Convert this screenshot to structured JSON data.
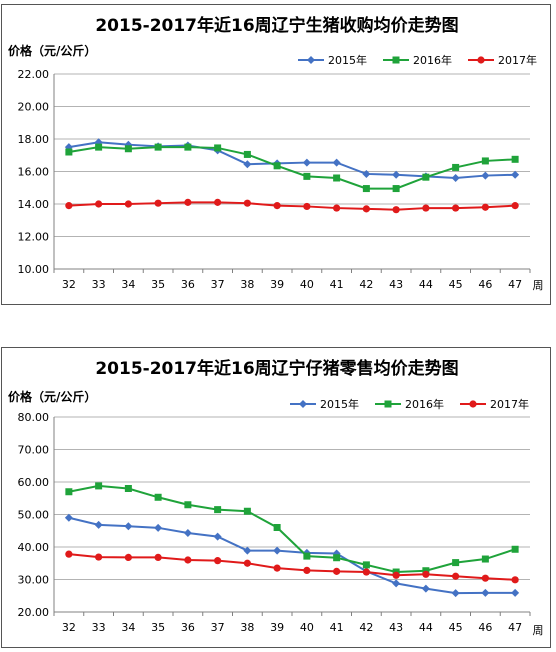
{
  "chart_data": [
    {
      "type": "line",
      "title": "2015-2017年近16周辽宁生猪收购均价走势图",
      "ylabel": "价格（元/公斤）",
      "xlabel": "周",
      "ylim": [
        10,
        22
      ],
      "yticks": [
        "10.00",
        "12.00",
        "14.00",
        "16.00",
        "18.00",
        "20.00",
        "22.00"
      ],
      "categories": [
        "32",
        "33",
        "34",
        "35",
        "36",
        "37",
        "38",
        "39",
        "40",
        "41",
        "42",
        "43",
        "44",
        "45",
        "46",
        "47"
      ],
      "grid": true,
      "legend": "top-right",
      "series": [
        {
          "name": "2015年",
          "color": "#4472C4",
          "marker": "diamond",
          "values": [
            17.5,
            17.8,
            17.65,
            17.55,
            17.6,
            17.3,
            16.45,
            16.5,
            16.55,
            16.55,
            15.85,
            15.8,
            15.7,
            15.6,
            15.75,
            15.8
          ]
        },
        {
          "name": "2016年",
          "color": "#1FA33A",
          "marker": "square",
          "values": [
            17.2,
            17.5,
            17.4,
            17.5,
            17.5,
            17.45,
            17.05,
            16.35,
            15.7,
            15.6,
            14.95,
            14.95,
            15.65,
            16.25,
            16.65,
            16.75
          ]
        },
        {
          "name": "2017年",
          "color": "#E01A1A",
          "marker": "circle",
          "values": [
            13.9,
            14.0,
            14.0,
            14.05,
            14.1,
            14.1,
            14.05,
            13.9,
            13.85,
            13.75,
            13.7,
            13.65,
            13.75,
            13.75,
            13.8,
            13.9
          ]
        }
      ]
    },
    {
      "type": "line",
      "title": "2015-2017年近16周辽宁仔猪零售均价走势图",
      "ylabel": "价格（元/公斤）",
      "xlabel": "周",
      "ylim": [
        20,
        80
      ],
      "yticks": [
        "20.00",
        "30.00",
        "40.00",
        "50.00",
        "60.00",
        "70.00",
        "80.00"
      ],
      "categories": [
        "32",
        "33",
        "34",
        "35",
        "36",
        "37",
        "38",
        "39",
        "40",
        "41",
        "42",
        "43",
        "44",
        "45",
        "46",
        "47"
      ],
      "grid": true,
      "legend": "top-right",
      "series": [
        {
          "name": "2015年",
          "color": "#4472C4",
          "marker": "diamond",
          "values": [
            49,
            46.8,
            46.4,
            45.9,
            44.3,
            43.2,
            38.9,
            38.9,
            38.2,
            38.0,
            32.5,
            28.8,
            27.2,
            25.8,
            25.9,
            25.9
          ]
        },
        {
          "name": "2016年",
          "color": "#1FA33A",
          "marker": "square",
          "values": [
            57,
            58.8,
            58,
            55.3,
            53,
            51.5,
            51,
            46,
            37.2,
            36.7,
            34.5,
            32.3,
            32.7,
            35.2,
            36.3,
            39.3
          ]
        },
        {
          "name": "2017年",
          "color": "#E01A1A",
          "marker": "circle",
          "values": [
            37.8,
            36.9,
            36.8,
            36.8,
            36.0,
            35.8,
            35.0,
            33.5,
            32.8,
            32.5,
            32.3,
            31.3,
            31.6,
            31.0,
            30.4,
            29.9
          ]
        }
      ]
    }
  ]
}
